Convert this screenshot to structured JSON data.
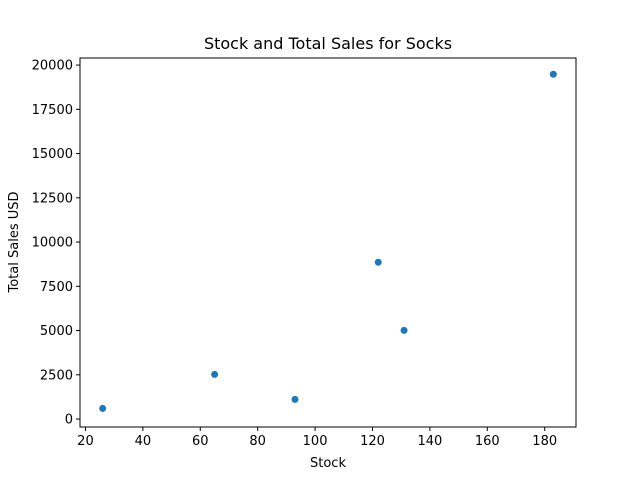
{
  "chart_data": {
    "type": "scatter",
    "title": "Stock and Total Sales for Socks",
    "xlabel": "Stock",
    "ylabel": "Total Sales USD",
    "xlim": [
      18.1,
      190.9
    ],
    "ylim": [
      -450,
      20400
    ],
    "xticks": [
      20,
      40,
      60,
      80,
      100,
      120,
      140,
      160,
      180
    ],
    "yticks": [
      0,
      2500,
      5000,
      7500,
      10000,
      12500,
      15000,
      17500,
      20000
    ],
    "grid": false,
    "marker_color": "#1f77b4",
    "series": [
      {
        "x": [
          26,
          65,
          93,
          122,
          131,
          183
        ],
        "y": [
          600,
          2520,
          1110,
          8860,
          5010,
          19480
        ]
      }
    ]
  }
}
